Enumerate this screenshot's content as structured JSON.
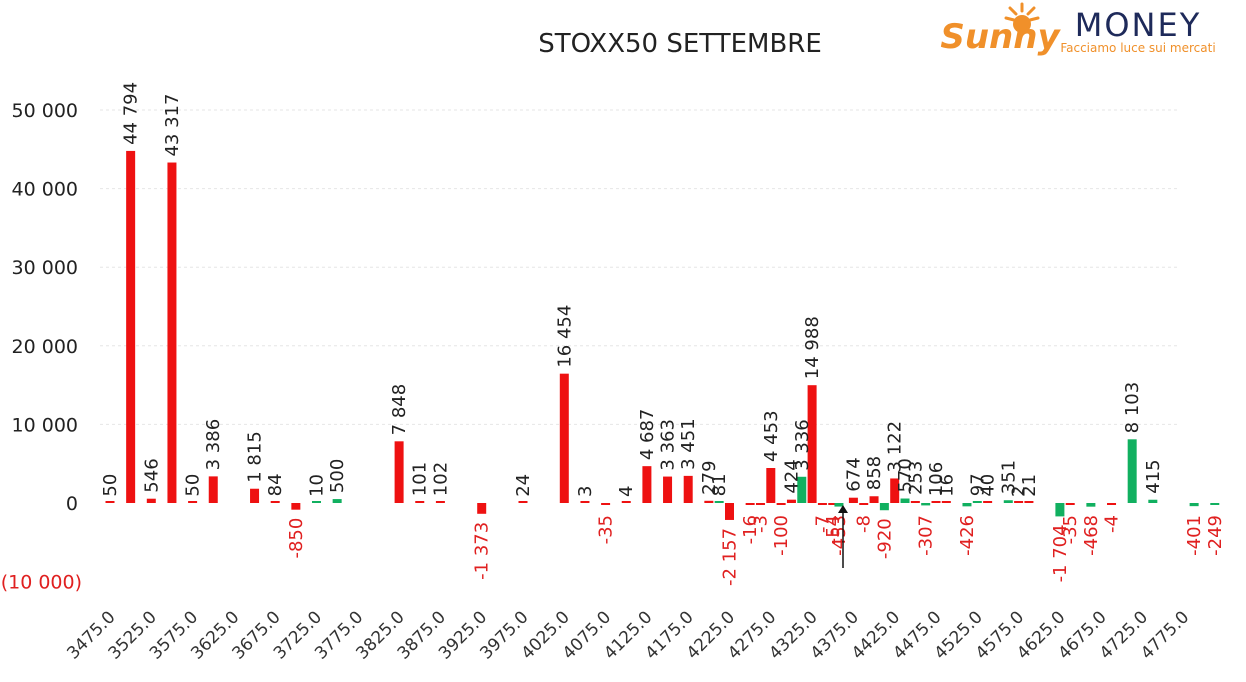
{
  "chart_data": {
    "type": "bar",
    "title": "STOXX50 SETTEMBRE",
    "xlabel": "",
    "ylabel": "",
    "ylim": [
      -10000,
      50000
    ],
    "yticks": [
      50000,
      40000,
      30000,
      20000,
      10000,
      0,
      -10000
    ],
    "ytick_labels": [
      "50 000",
      "40 000",
      "30 000",
      "20 000",
      "10 000",
      "0",
      "(10 000)"
    ],
    "grid": true,
    "legend": "none",
    "categories": [
      "3475.0",
      "3525.0",
      "3575.0",
      "3625.0",
      "3675.0",
      "3725.0",
      "3775.0",
      "3825.0",
      "3875.0",
      "3925.0",
      "3975.0",
      "4025.0",
      "4075.0",
      "4125.0",
      "4175.0",
      "4225.0",
      "4275.0",
      "4325.0",
      "4375.0",
      "4425.0",
      "4475.0",
      "4525.0",
      "4575.0",
      "4625.0",
      "4675.0",
      "4725.0",
      "4775.0"
    ],
    "colors": {
      "red": "#ee1111",
      "green": "#11b060",
      "negative_tick": "#e02020",
      "text": "#222222"
    },
    "bars": [
      {
        "slot": 0.0,
        "value": 50,
        "label": "50",
        "color": "red"
      },
      {
        "slot": 0.5,
        "value": 44794,
        "label": "44 794",
        "color": "red"
      },
      {
        "slot": 1.0,
        "value": 546,
        "label": "546",
        "color": "red"
      },
      {
        "slot": 1.5,
        "value": 43317,
        "label": "43 317",
        "color": "red"
      },
      {
        "slot": 2.0,
        "value": 50,
        "label": "50",
        "color": "red"
      },
      {
        "slot": 2.5,
        "value": 3386,
        "label": "3 386",
        "color": "red"
      },
      {
        "slot": 3.5,
        "value": 1815,
        "label": "1 815",
        "color": "red"
      },
      {
        "slot": 4.0,
        "value": 84,
        "label": "84",
        "color": "red"
      },
      {
        "slot": 4.5,
        "value": -850,
        "label": "-850",
        "color": "red"
      },
      {
        "slot": 5.0,
        "value": 10,
        "label": "10",
        "color": "green"
      },
      {
        "slot": 5.5,
        "value": 500,
        "label": "500",
        "color": "green"
      },
      {
        "slot": 7.0,
        "value": 7848,
        "label": "7 848",
        "color": "red"
      },
      {
        "slot": 7.5,
        "value": 101,
        "label": "101",
        "color": "red"
      },
      {
        "slot": 8.0,
        "value": 102,
        "label": "102",
        "color": "red"
      },
      {
        "slot": 9.0,
        "value": -1373,
        "label": "-1 373",
        "color": "red"
      },
      {
        "slot": 10.0,
        "value": 24,
        "label": "24",
        "color": "red"
      },
      {
        "slot": 11.0,
        "value": 16454,
        "label": "16 454",
        "color": "red"
      },
      {
        "slot": 11.5,
        "value": 3,
        "label": "3",
        "color": "red"
      },
      {
        "slot": 12.0,
        "value": -35,
        "label": "-35",
        "color": "red"
      },
      {
        "slot": 12.5,
        "value": 4,
        "label": "4",
        "color": "red"
      },
      {
        "slot": 13.0,
        "value": 4687,
        "label": "4 687",
        "color": "red"
      },
      {
        "slot": 13.5,
        "value": 3363,
        "label": "3 363",
        "color": "red"
      },
      {
        "slot": 14.0,
        "value": 3451,
        "label": "3 451",
        "color": "red"
      },
      {
        "slot": 14.5,
        "value": 279,
        "label": "279",
        "color": "red"
      },
      {
        "slot": 14.75,
        "value": 81,
        "label": "81",
        "color": "green"
      },
      {
        "slot": 15.0,
        "value": -2157,
        "label": "-2 157",
        "color": "red"
      },
      {
        "slot": 15.5,
        "value": -16,
        "label": "-16",
        "color": "red"
      },
      {
        "slot": 15.75,
        "value": -3,
        "label": "-3",
        "color": "red"
      },
      {
        "slot": 16.0,
        "value": 4453,
        "label": "4 453",
        "color": "red"
      },
      {
        "slot": 16.25,
        "value": -100,
        "label": "-100",
        "color": "red"
      },
      {
        "slot": 16.5,
        "value": 424,
        "label": "424",
        "color": "red"
      },
      {
        "slot": 16.75,
        "value": 3336,
        "label": "3 336",
        "color": "green"
      },
      {
        "slot": 17.0,
        "value": 14988,
        "label": "14 988",
        "color": "red"
      },
      {
        "slot": 17.25,
        "value": -7,
        "label": "-7",
        "color": "red"
      },
      {
        "slot": 17.5,
        "value": -54,
        "label": "-54",
        "color": "red"
      },
      {
        "slot": 17.65,
        "value": -453,
        "label": "-453",
        "color": "green"
      },
      {
        "slot": 18.0,
        "value": 674,
        "label": "674",
        "color": "red"
      },
      {
        "slot": 18.25,
        "value": -8,
        "label": "-8",
        "color": "red"
      },
      {
        "slot": 18.5,
        "value": 858,
        "label": "858",
        "color": "red"
      },
      {
        "slot": 18.75,
        "value": -920,
        "label": "-920",
        "color": "green"
      },
      {
        "slot": 19.0,
        "value": 3122,
        "label": "3 122",
        "color": "red"
      },
      {
        "slot": 19.25,
        "value": 570,
        "label": "570",
        "color": "green"
      },
      {
        "slot": 19.5,
        "value": 253,
        "label": "253",
        "color": "red"
      },
      {
        "slot": 19.75,
        "value": -307,
        "label": "-307",
        "color": "green"
      },
      {
        "slot": 20.0,
        "value": 106,
        "label": "106",
        "color": "red"
      },
      {
        "slot": 20.25,
        "value": 16,
        "label": "16",
        "color": "red"
      },
      {
        "slot": 20.75,
        "value": -426,
        "label": "-426",
        "color": "green"
      },
      {
        "slot": 21.0,
        "value": 97,
        "label": "97",
        "color": "green"
      },
      {
        "slot": 21.25,
        "value": 40,
        "label": "40",
        "color": "red"
      },
      {
        "slot": 21.75,
        "value": 351,
        "label": "351",
        "color": "green"
      },
      {
        "slot": 22.0,
        "value": 2,
        "label": "2",
        "color": "red"
      },
      {
        "slot": 22.25,
        "value": 21,
        "label": "21",
        "color": "red"
      },
      {
        "slot": 23.0,
        "value": -1704,
        "label": "-1 704",
        "color": "green"
      },
      {
        "slot": 23.25,
        "value": -35,
        "label": "-35",
        "color": "red"
      },
      {
        "slot": 23.75,
        "value": -468,
        "label": "-468",
        "color": "green"
      },
      {
        "slot": 24.25,
        "value": -4,
        "label": "-4",
        "color": "red"
      },
      {
        "slot": 24.75,
        "value": 8103,
        "label": "8 103",
        "color": "green"
      },
      {
        "slot": 25.25,
        "value": 415,
        "label": "415",
        "color": "green"
      },
      {
        "slot": 26.25,
        "value": -401,
        "label": "-401",
        "color": "green"
      },
      {
        "slot": 26.75,
        "value": -249,
        "label": "-249",
        "color": "green"
      }
    ]
  },
  "logo": {
    "brand_left": "Sunny",
    "brand_right": "MONEY",
    "tagline": "Facciamo luce sui mercati",
    "colors": {
      "orange": "#f0902a",
      "navy": "#1e2a5a"
    }
  }
}
